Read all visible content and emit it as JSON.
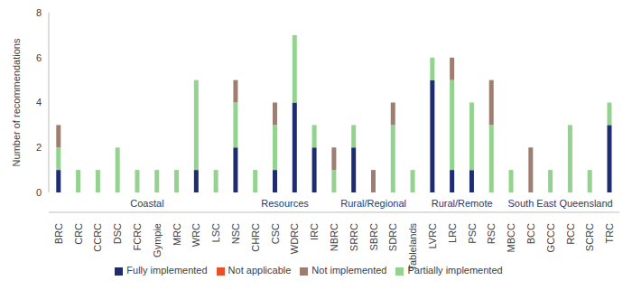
{
  "chart_data": {
    "type": "bar",
    "stacked": true,
    "grid": false,
    "legend": "bottom",
    "y_label": "Number of recommendations",
    "categories": [
      "BRC",
      "CRC",
      "CCRC",
      "DSC",
      "FCRC",
      "Gympie",
      "MRC",
      "WRC",
      "LSC",
      "NSC",
      "CHRC",
      "CSC",
      "WDRC",
      "IRC",
      "NBRC",
      "SRRC",
      "SBRC",
      "SDRC",
      "Tablelands",
      "LVRC",
      "LRC",
      "PSC",
      "RSC",
      "MBCC",
      "BCC",
      "GCCC",
      "RCC",
      "SCRC",
      "TRC"
    ],
    "groups": [
      {
        "name": "Coastal",
        "categories": [
          "BRC",
          "CRC",
          "CCRC",
          "DSC",
          "FCRC",
          "Gympie",
          "MRC",
          "WRC",
          "LSC",
          "NSC"
        ]
      },
      {
        "name": "Resources",
        "categories": [
          "CHRC",
          "CSC",
          "WDRC",
          "IRC"
        ]
      },
      {
        "name": "Rural/Regional",
        "categories": [
          "NBRC",
          "SRRC",
          "SBRC",
          "SDRC",
          "Tablelands"
        ]
      },
      {
        "name": "Rural/Remote",
        "categories": [
          "LVRC",
          "LRC",
          "PSC",
          "RSC"
        ]
      },
      {
        "name": "South East Queensland",
        "categories": [
          "MBCC",
          "BCC",
          "GCCC",
          "RCC",
          "SCRC",
          "TRC"
        ]
      }
    ],
    "series": [
      {
        "name": "Fully implemented",
        "color": "#1f2c6e",
        "values": [
          1,
          0,
          0,
          0,
          0,
          0,
          0,
          1,
          0,
          2,
          0,
          1,
          4,
          2,
          0,
          2,
          0,
          0,
          0,
          5,
          1,
          1,
          0,
          0,
          0,
          0,
          0,
          0,
          3
        ]
      },
      {
        "name": "Partially implemented",
        "color": "#93d38f",
        "values": [
          1,
          1,
          1,
          2,
          1,
          1,
          1,
          4,
          1,
          2,
          1,
          2,
          3,
          1,
          1,
          1,
          0,
          3,
          1,
          1,
          4,
          3,
          3,
          1,
          0,
          1,
          3,
          1,
          1
        ]
      },
      {
        "name": "Not implemented",
        "color": "#9e7e70",
        "values": [
          1,
          0,
          0,
          0,
          0,
          0,
          0,
          0,
          0,
          1,
          0,
          1,
          0,
          0,
          1,
          0,
          1,
          1,
          0,
          0,
          1,
          0,
          2,
          0,
          2,
          0,
          0,
          0,
          0
        ]
      },
      {
        "name": "Not applicable",
        "color": "#e8502a",
        "values": [
          0,
          0,
          0,
          0,
          0,
          0,
          0,
          0,
          0,
          0,
          0,
          0,
          0,
          0,
          0,
          0,
          0,
          0,
          0,
          0,
          0,
          0,
          0,
          0,
          0,
          0,
          0,
          0,
          0
        ]
      }
    ],
    "ylim": [
      0,
      8
    ],
    "yticks": [
      0,
      2,
      4,
      6,
      8
    ]
  }
}
